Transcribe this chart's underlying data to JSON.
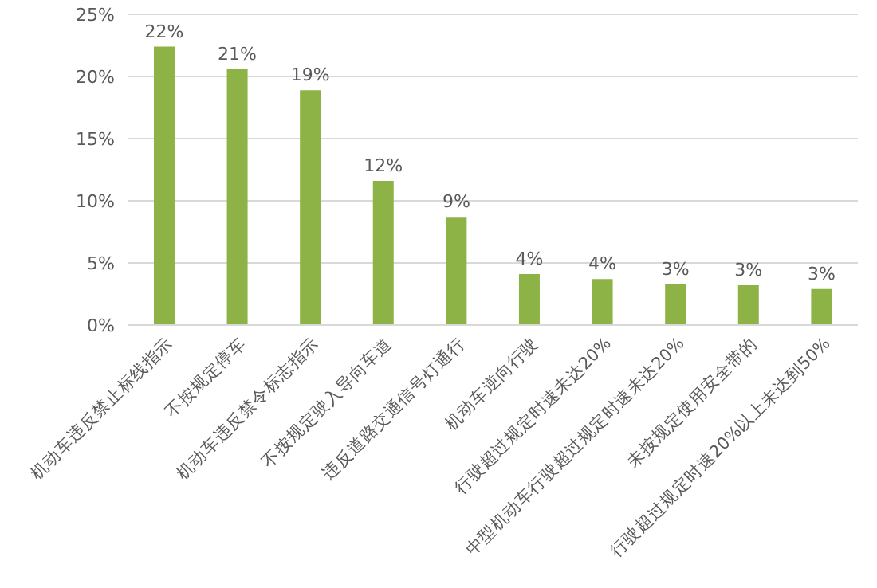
{
  "chart_data": {
    "type": "bar",
    "categories": [
      "机动车违反禁止标线指示",
      "不按规定停车",
      "机动车违反禁令标志指示",
      "不按规定驶入导向车道",
      "违反道路交通信号灯通行",
      "机动车逆向行驶",
      "行驶超过规定时速未达20%",
      "中型机动车行驶超过规定时速未达20%",
      "未按规定使用安全带的",
      "行驶超过规定时速20%以上未达到50%"
    ],
    "values": [
      22.4,
      20.6,
      18.9,
      11.6,
      8.7,
      4.1,
      3.7,
      3.3,
      3.2,
      2.9
    ],
    "value_labels": [
      "22%",
      "21%",
      "19%",
      "12%",
      "9%",
      "4%",
      "4%",
      "3%",
      "3%",
      "3%"
    ],
    "color": "#8db347",
    "ylim": [
      0,
      25
    ],
    "yticks": [
      {
        "value": 0,
        "label": "0%"
      },
      {
        "value": 5,
        "label": "5%"
      },
      {
        "value": 10,
        "label": "10%"
      },
      {
        "value": 15,
        "label": "15%"
      },
      {
        "value": 20,
        "label": "20%"
      },
      {
        "value": 25,
        "label": "25%"
      }
    ],
    "grid": "y"
  }
}
